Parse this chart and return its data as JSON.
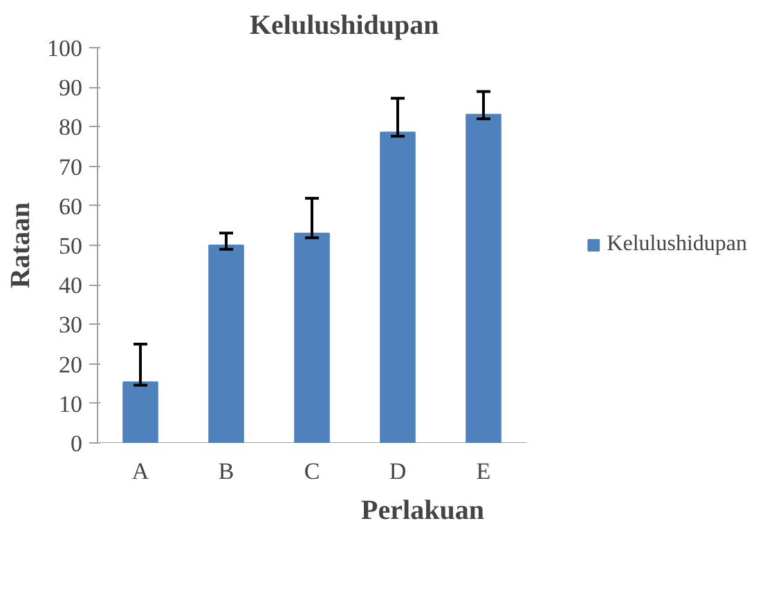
{
  "chart_data": {
    "type": "bar",
    "title": "Kelulushidupan",
    "xlabel": "Perlakuan",
    "ylabel": "Rataan",
    "categories": [
      "A",
      "B",
      "C",
      "D",
      "E"
    ],
    "series": [
      {
        "name": "Kelulushidupan",
        "color": "#4f81bd",
        "values": [
          15.4,
          50,
          53,
          78.6,
          83.1
        ],
        "errors": [
          [
            14.6,
            25
          ],
          [
            49,
            53.1
          ],
          [
            51.9,
            61.9
          ],
          [
            77.6,
            87.2
          ],
          [
            82,
            88.9
          ]
        ]
      }
    ],
    "ylim": [
      0,
      100
    ],
    "yticks": [
      0,
      10,
      20,
      30,
      40,
      50,
      60,
      70,
      80,
      90,
      100
    ],
    "grid": false,
    "legend": "right"
  }
}
